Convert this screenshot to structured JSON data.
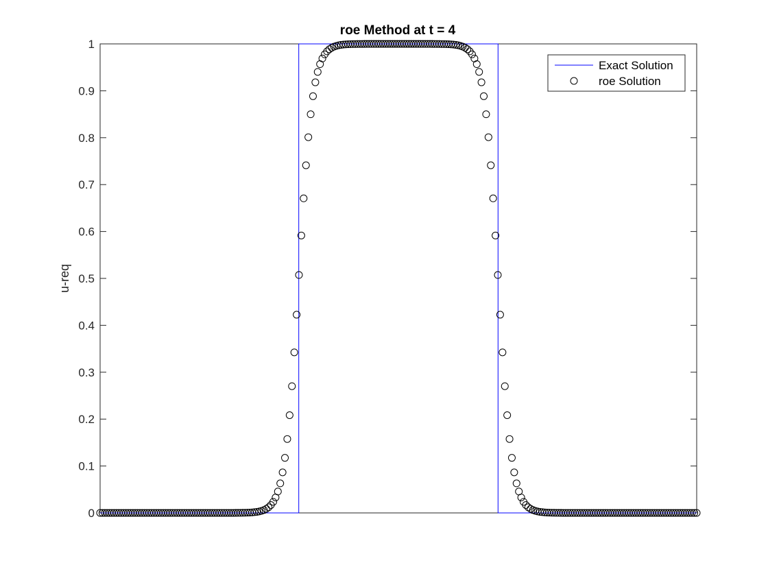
{
  "chart_data": {
    "type": "line",
    "title": "roe Method at t = 4",
    "xlabel": "",
    "ylabel": "u-req",
    "ylim": [
      0,
      1
    ],
    "yticks": [
      "0",
      "0.1",
      "0.2",
      "0.3",
      "0.4",
      "0.5",
      "0.6",
      "0.7",
      "0.8",
      "0.9",
      "1"
    ],
    "xticks": [],
    "grid": false,
    "legend_position": "top-right",
    "series": [
      {
        "name": "Exact Solution",
        "style": "line",
        "color": "#0000ff",
        "x": [
          0,
          0.333,
          0.333,
          0.667,
          0.667,
          1
        ],
        "y": [
          0,
          0,
          1,
          1,
          0,
          0
        ]
      },
      {
        "name": "roe Solution",
        "style": "circle-markers",
        "color": "#000000",
        "n_points": 256,
        "rise_center": 0.333,
        "fall_center": 0.667,
        "transition_width": 0.046
      }
    ]
  }
}
